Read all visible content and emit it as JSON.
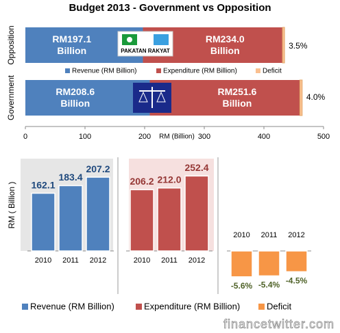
{
  "chart_data": [
    {
      "type": "hbar",
      "stacked": true,
      "title": "Budget 2013 - Government vs Opposition",
      "categories": [
        "Opposition",
        "Government"
      ],
      "series": [
        {
          "name": "Revenue (RM Billion)",
          "color": "#4f81bd",
          "values": [
            197.1,
            208.6
          ],
          "value_labels": [
            "RM197.1 Billion",
            "RM208.6 Billion"
          ]
        },
        {
          "name": "Expenditure (RM Billion)",
          "color": "#c0504d",
          "values": [
            234.0,
            251.6
          ],
          "value_labels": [
            "RM234.0 Billion",
            "RM251.6 Billion"
          ]
        },
        {
          "name": "Deficit",
          "color": "#fac090",
          "values": [
            3.5,
            4.0
          ],
          "value_labels": [
            "3.5%",
            "4.0%"
          ]
        }
      ],
      "xlim": [
        0,
        500
      ],
      "xticks": [
        0,
        100,
        200,
        300,
        400,
        500
      ],
      "xlabel": "RM (Billion)",
      "annotations": [
        "PAKATAN RAKYAT"
      ]
    },
    {
      "type": "bar",
      "ylabel": "RM ( Billion )",
      "categories": [
        "2010",
        "2011",
        "2012"
      ],
      "series": [
        {
          "name": "Revenue (RM Billion)",
          "color": "#4f81bd",
          "values": [
            162.1,
            183.4,
            207.2
          ]
        }
      ],
      "ylim": [
        0,
        240
      ]
    },
    {
      "type": "bar",
      "categories": [
        "2010",
        "2011",
        "2012"
      ],
      "series": [
        {
          "name": "Expenditure (RM Billion)",
          "color": "#c0504d",
          "values": [
            206.2,
            212.0,
            252.4
          ],
          "value_labels": [
            "206.2",
            "212.0",
            "252.4"
          ]
        }
      ],
      "ylim": [
        0,
        290
      ]
    },
    {
      "type": "bar",
      "categories": [
        "2010",
        "2011",
        "2012"
      ],
      "series": [
        {
          "name": "Deficit",
          "color": "#f79646",
          "values": [
            -5.6,
            -5.4,
            -4.5
          ],
          "value_labels": [
            "-5.6%",
            "-5.4%",
            "-4.5%"
          ]
        }
      ],
      "ylim": [
        -7.4,
        0
      ]
    }
  ],
  "watermark": "financetwitter.com"
}
